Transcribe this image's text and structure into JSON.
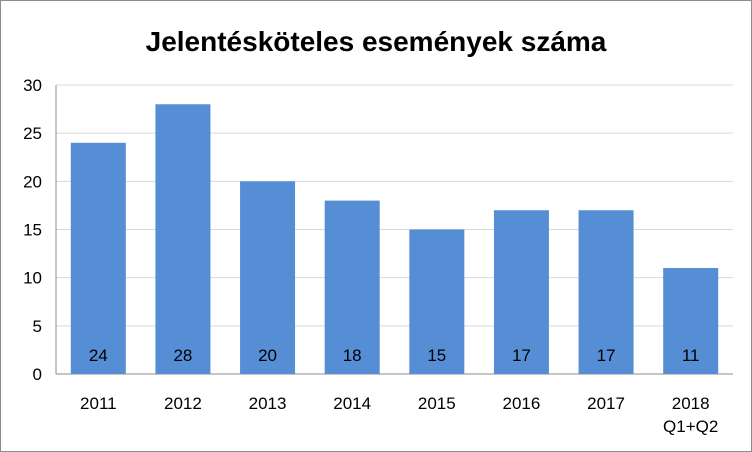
{
  "chart_data": {
    "type": "bar",
    "title": "Jelentésköteles események száma",
    "categories": [
      "2011",
      "2012",
      "2013",
      "2014",
      "2015",
      "2016",
      "2017",
      "2018\nQ1+Q2"
    ],
    "values": [
      24,
      28,
      20,
      18,
      15,
      17,
      17,
      11
    ],
    "data_labels": [
      "24",
      "28",
      "20",
      "18",
      "15",
      "17",
      "17",
      "11"
    ],
    "yticks": [
      "0",
      "5",
      "10",
      "15",
      "20",
      "25",
      "30"
    ],
    "ylim": [
      0,
      30
    ],
    "grid": true,
    "legend": "none",
    "bar_color": "#558ed5"
  }
}
